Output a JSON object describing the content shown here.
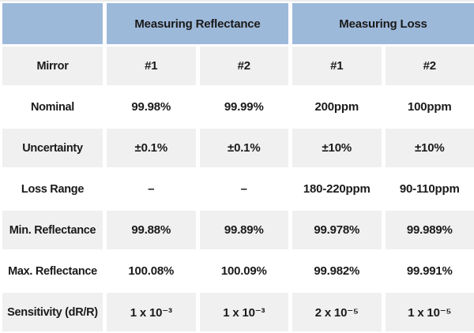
{
  "colors": {
    "header_bg": "#9db9da",
    "alt_row_bg": "#f0f0f0",
    "text": "#1a1a1a"
  },
  "chart_data": {
    "type": "table",
    "column_groups": [
      {
        "label": "Measuring Reflectance",
        "span": 2
      },
      {
        "label": "Measuring Loss",
        "span": 2
      }
    ],
    "columns": [
      "Mirror",
      "#1",
      "#2",
      "#1",
      "#2"
    ],
    "rows": [
      {
        "label": "Nominal",
        "values": [
          "99.98%",
          "99.99%",
          "200ppm",
          "100ppm"
        ]
      },
      {
        "label": "Uncertainty",
        "values": [
          "±0.1%",
          "±0.1%",
          "±10%",
          "±10%"
        ]
      },
      {
        "label": "Loss Range",
        "values": [
          "–",
          "–",
          "180-220ppm",
          "90-110ppm"
        ]
      },
      {
        "label": "Min. Reflectance",
        "values": [
          "99.88%",
          "99.89%",
          "99.978%",
          "99.989%"
        ]
      },
      {
        "label": "Max. Reflectance",
        "values": [
          "100.08%",
          "100.09%",
          "99.982%",
          "99.991%"
        ]
      },
      {
        "label": "Sensitivity (dR/R)",
        "values": [
          "1 x 10⁻³",
          "1 x 10⁻³",
          "2 x 10⁻⁵",
          "1 x 10⁻⁵"
        ]
      }
    ]
  }
}
